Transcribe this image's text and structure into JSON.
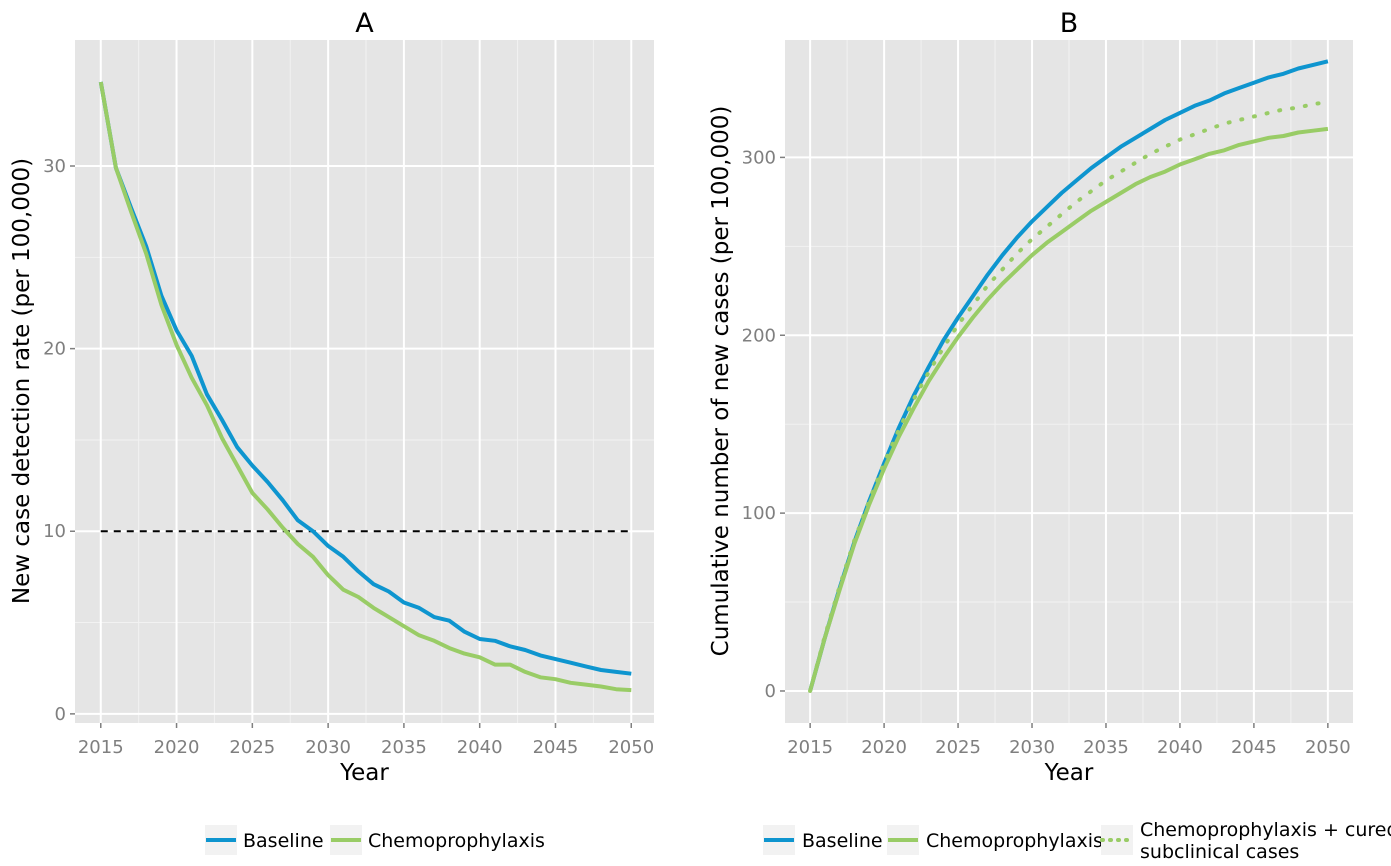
{
  "colors": {
    "panel_bg": "#e5e5e5",
    "grid_major": "#ffffff",
    "grid_minor": "#f2f2f2",
    "baseline": "#0e95cf",
    "chemoprophylaxis": "#99cc66",
    "reference_line": "#000000"
  },
  "chart_data": [
    {
      "type": "line",
      "title": "A",
      "xlabel": "Year",
      "ylabel": "New case detection rate (per 100,000)",
      "xlim": [
        2013.3,
        2051.5
      ],
      "ylim": [
        -0.5,
        36.9
      ],
      "xticks": [
        2015,
        2020,
        2025,
        2030,
        2035,
        2040,
        2045,
        2050
      ],
      "xtick_labels": [
        "2015",
        "2020",
        "2025",
        "2030",
        "2035",
        "2040",
        "2045",
        "2050"
      ],
      "yticks": [
        0,
        10,
        20,
        30
      ],
      "ytick_labels": [
        "0",
        "10",
        "20",
        "30"
      ],
      "grid": true,
      "legend_position": "bottom",
      "x": [
        2015,
        2016,
        2017,
        2018,
        2019,
        2020,
        2021,
        2022,
        2023,
        2024,
        2025,
        2026,
        2027,
        2028,
        2029,
        2030,
        2031,
        2032,
        2033,
        2034,
        2035,
        2036,
        2037,
        2038,
        2039,
        2040,
        2041,
        2042,
        2043,
        2044,
        2045,
        2046,
        2047,
        2048,
        2049,
        2050
      ],
      "series": [
        {
          "name": "Baseline",
          "color_key": "baseline",
          "style": "solid",
          "values": [
            34.6,
            29.9,
            27.7,
            25.6,
            22.9,
            21.0,
            19.6,
            17.5,
            16.1,
            14.6,
            13.6,
            12.7,
            11.7,
            10.6,
            10.0,
            9.2,
            8.6,
            7.8,
            7.1,
            6.7,
            6.1,
            5.8,
            5.3,
            5.1,
            4.5,
            4.1,
            4.0,
            3.7,
            3.5,
            3.2,
            3.0,
            2.8,
            2.6,
            2.4,
            2.3,
            2.2
          ]
        },
        {
          "name": "Chemoprophylaxis",
          "color_key": "chemoprophylaxis",
          "style": "solid",
          "values": [
            34.6,
            29.9,
            27.5,
            25.2,
            22.4,
            20.2,
            18.4,
            16.9,
            15.1,
            13.6,
            12.1,
            11.2,
            10.2,
            9.3,
            8.6,
            7.6,
            6.8,
            6.4,
            5.8,
            5.3,
            4.8,
            4.3,
            4.0,
            3.6,
            3.3,
            3.1,
            2.7,
            2.7,
            2.3,
            2.0,
            1.9,
            1.7,
            1.6,
            1.5,
            1.35,
            1.3
          ]
        }
      ],
      "reference_line": {
        "y": 10,
        "x_from": 2015,
        "x_to": 2050,
        "style": "dashed"
      }
    },
    {
      "type": "line",
      "title": "B",
      "xlabel": "Year",
      "ylabel": "Cumulative number of new cases (per 100,000)",
      "xlim": [
        2013.3,
        2051.7
      ],
      "ylim": [
        -18,
        366
      ],
      "xticks": [
        2015,
        2020,
        2025,
        2030,
        2035,
        2040,
        2045,
        2050
      ],
      "xtick_labels": [
        "2015",
        "2020",
        "2025",
        "2030",
        "2035",
        "2040",
        "2045",
        "2050"
      ],
      "yticks": [
        0,
        100,
        200,
        300
      ],
      "ytick_labels": [
        "0",
        "100",
        "200",
        "300"
      ],
      "grid": true,
      "legend_position": "bottom",
      "x": [
        2015,
        2016,
        2017,
        2018,
        2019,
        2020,
        2021,
        2022,
        2023,
        2024,
        2025,
        2026,
        2027,
        2028,
        2029,
        2030,
        2031,
        2032,
        2033,
        2034,
        2035,
        2036,
        2037,
        2038,
        2039,
        2040,
        2041,
        2042,
        2043,
        2044,
        2045,
        2046,
        2047,
        2048,
        2049,
        2050
      ],
      "series": [
        {
          "name": "Baseline",
          "color_key": "baseline",
          "style": "solid",
          "values": [
            0,
            30,
            58,
            84,
            107,
            128,
            148,
            166,
            182,
            197,
            210,
            222,
            234,
            245,
            255,
            264,
            272,
            280,
            287,
            294,
            300,
            306,
            311,
            316,
            321,
            325,
            329,
            332,
            336,
            339,
            342,
            345,
            347,
            350,
            352,
            354
          ]
        },
        {
          "name": "Chemoprophylaxis",
          "color_key": "chemoprophylaxis",
          "style": "solid",
          "values": [
            0,
            30,
            57,
            83,
            105,
            125,
            143,
            159,
            174,
            187,
            199,
            210,
            220,
            229,
            237,
            245,
            252,
            258,
            264,
            270,
            275,
            280,
            285,
            289,
            292,
            296,
            299,
            302,
            304,
            307,
            309,
            311,
            312,
            314,
            315,
            316
          ]
        },
        {
          "name": "Chemoprophylaxis + cured subclinical cases",
          "legend_lines": [
            "Chemoprophylaxis + cured",
            "subclinical cases"
          ],
          "color_key": "chemoprophylaxis",
          "style": "dotted",
          "values": [
            0,
            31,
            59,
            85,
            107,
            128,
            147,
            164,
            179,
            193,
            206,
            217,
            228,
            237,
            246,
            254,
            261,
            268,
            275,
            281,
            287,
            292,
            297,
            302,
            306,
            310,
            313,
            316,
            319,
            321,
            323,
            325,
            327,
            328,
            330,
            331
          ]
        }
      ]
    }
  ]
}
